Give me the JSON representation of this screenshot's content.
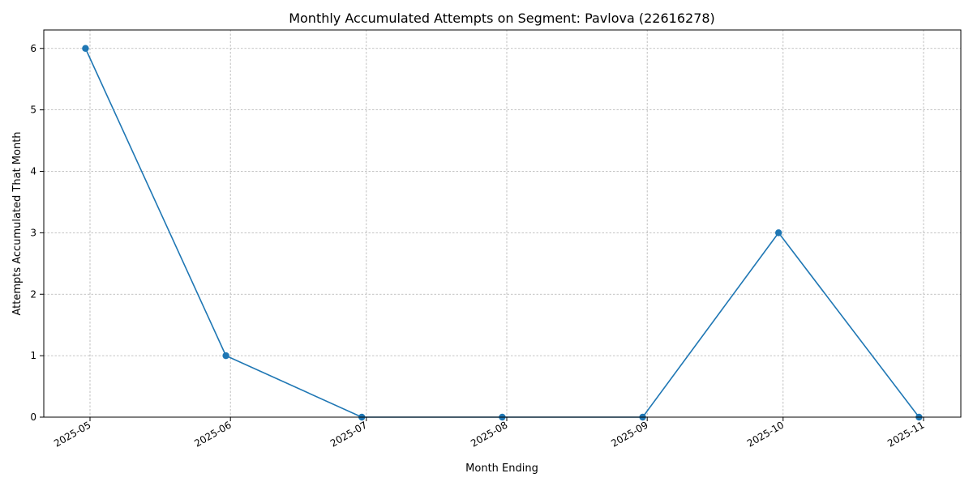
{
  "chart_data": {
    "type": "line",
    "title": "Monthly Accumulated Attempts on Segment: Pavlova (22616278)",
    "xlabel": "Month Ending",
    "ylabel": "Attempts Accumulated That Month",
    "x": [
      "2025-04-30",
      "2025-05-31",
      "2025-06-30",
      "2025-07-31",
      "2025-08-31",
      "2025-09-30",
      "2025-10-31"
    ],
    "series": [
      {
        "values": [
          6,
          1,
          0,
          0,
          0,
          3,
          0
        ],
        "color": "#1f77b4",
        "marker": "circle"
      }
    ],
    "x_ticks": [
      "2025-05",
      "2025-06",
      "2025-07",
      "2025-08",
      "2025-09",
      "2025-10",
      "2025-11"
    ],
    "x_tick_dates": [
      "2025-05-01",
      "2025-06-01",
      "2025-07-01",
      "2025-08-01",
      "2025-09-01",
      "2025-10-01",
      "2025-11-01"
    ],
    "y_ticks": [
      "0",
      "1",
      "2",
      "3",
      "4",
      "5",
      "6"
    ],
    "ylim": [
      0,
      6.3
    ],
    "grid": true,
    "grid_style": "dashed"
  }
}
